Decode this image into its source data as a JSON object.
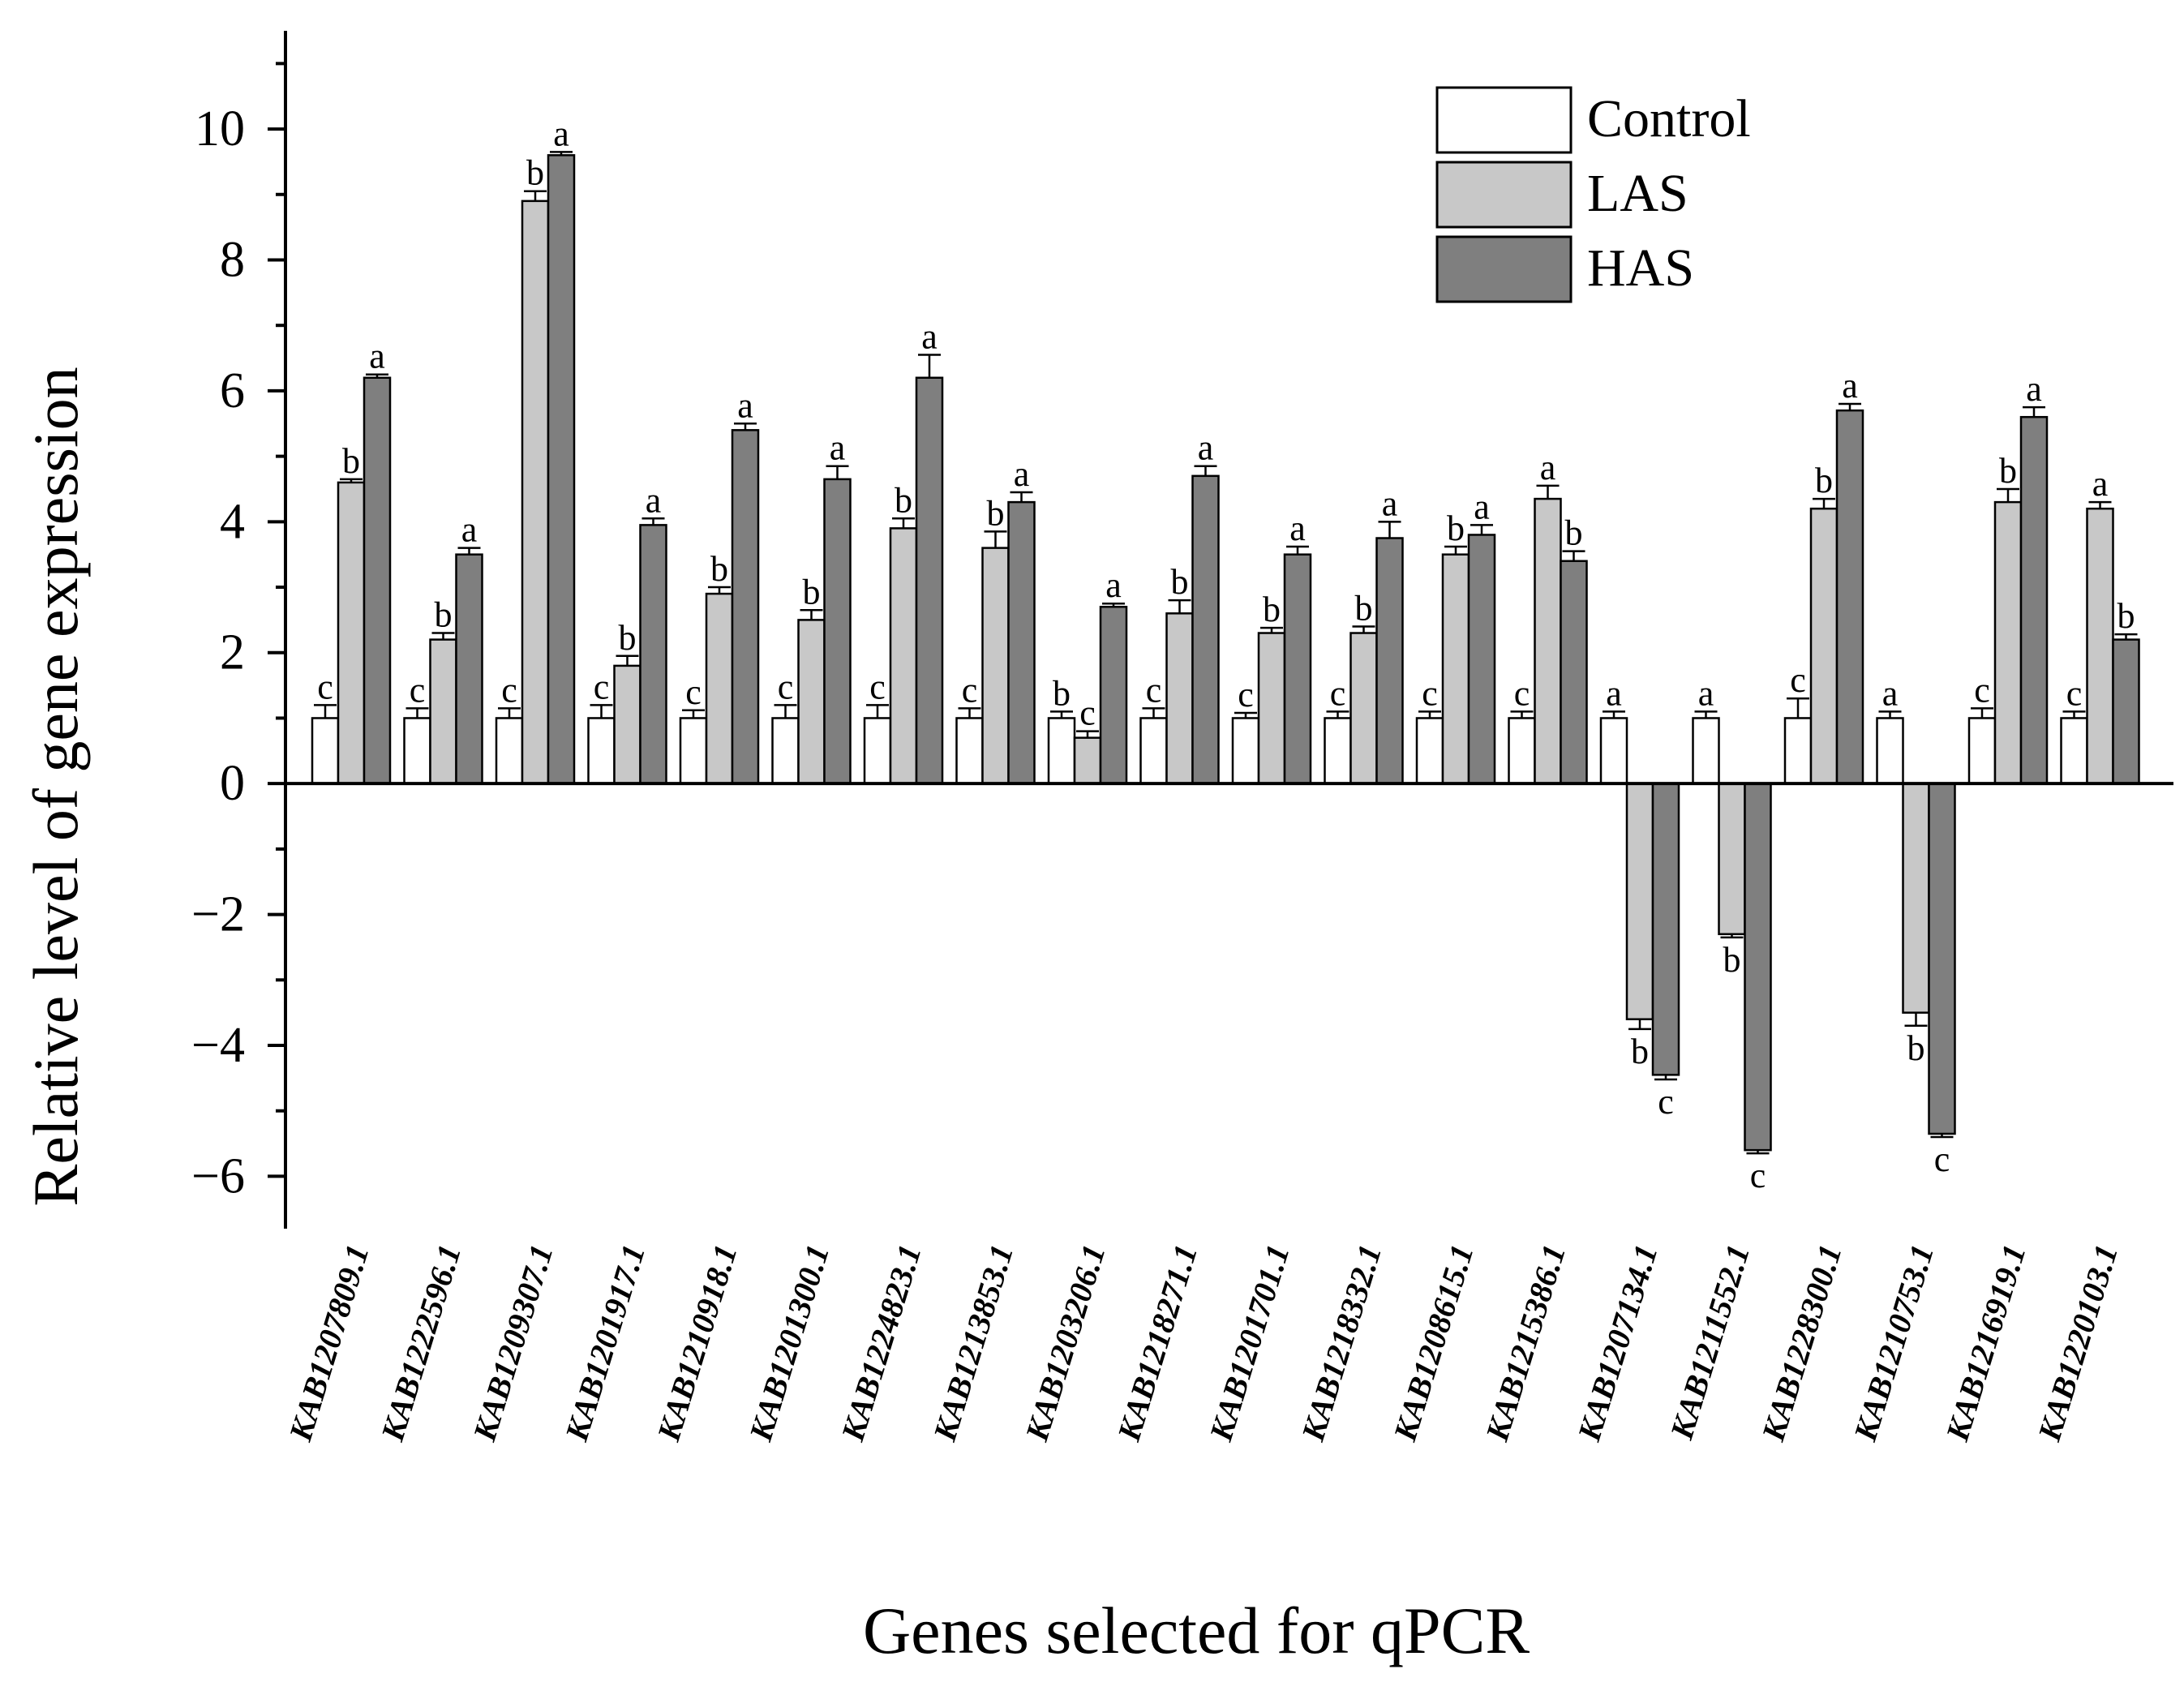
{
  "chart_data": {
    "type": "bar",
    "title": "",
    "xlabel": "Genes selected for qPCR",
    "ylabel": "Relative  level of gene expression",
    "ylim": [
      -6.8,
      11.5
    ],
    "yticks": [
      -6,
      -4,
      -2,
      0,
      2,
      4,
      6,
      8,
      10
    ],
    "ytick_labels": [
      "−6",
      "−4",
      "−2",
      "0",
      "2",
      "4",
      "6",
      "8",
      "10"
    ],
    "categories": [
      "KAB1207809.1",
      "KAB1222596.1",
      "KAB1209307.1",
      "KAB1201917.1",
      "KAB1210918.1",
      "KAB1201300.1",
      "KAB1224823.1",
      "KAB1213853.1",
      "KAB1203206.1",
      "KAB1218271.1",
      "KAB1201701.1",
      "KAB1218332.1",
      "KAB1208615.1",
      "KAB1215386.1",
      "KAB1207134.1",
      "KAB1211552.1",
      "KAB1228300.1",
      "KAB1210753.1",
      "KAB1216919.1",
      "KAB1220103.1"
    ],
    "series": [
      {
        "name": "Control",
        "color": "#ffffff",
        "values": [
          1,
          1,
          1,
          1,
          1,
          1,
          1,
          1,
          1,
          1,
          1,
          1,
          1,
          1,
          1,
          1,
          1,
          1,
          1,
          1
        ],
        "errors": [
          0.2,
          0.15,
          0.15,
          0.2,
          0.12,
          0.2,
          0.2,
          0.15,
          0.1,
          0.15,
          0.08,
          0.1,
          0.1,
          0.1,
          0.1,
          0.1,
          0.3,
          0.1,
          0.15,
          0.1
        ],
        "letters": [
          "c",
          "c",
          "c",
          "c",
          "c",
          "c",
          "c",
          "c",
          "b",
          "c",
          "c",
          "c",
          "c",
          "c",
          "a",
          "a",
          "c",
          "a",
          "c",
          "c"
        ]
      },
      {
        "name": "LAS",
        "color": "#c8c8c8",
        "values": [
          4.6,
          2.2,
          8.9,
          1.8,
          2.9,
          2.5,
          3.9,
          3.6,
          0.7,
          2.6,
          2.3,
          2.3,
          3.5,
          4.35,
          -3.6,
          -2.3,
          4.2,
          -3.5,
          4.3,
          4.2
        ],
        "errors": [
          0.05,
          0.1,
          0.15,
          0.15,
          0.1,
          0.15,
          0.15,
          0.25,
          0.1,
          0.2,
          0.08,
          0.1,
          0.12,
          0.2,
          0.15,
          0.05,
          0.15,
          0.2,
          0.2,
          0.1
        ],
        "letters": [
          "b",
          "b",
          "b",
          "b",
          "b",
          "b",
          "b",
          "b",
          "c",
          "b",
          "b",
          "b",
          "b",
          "a",
          "b",
          "b",
          "b",
          "b",
          "b",
          "a"
        ]
      },
      {
        "name": "HAS",
        "color": "#7f7f7f",
        "values": [
          6.2,
          3.5,
          9.6,
          3.95,
          5.4,
          4.65,
          6.2,
          4.3,
          2.7,
          4.7,
          3.5,
          3.75,
          3.8,
          3.4,
          -4.45,
          -5.6,
          5.7,
          -5.35,
          5.6,
          2.2
        ],
        "errors": [
          0.05,
          0.1,
          0.05,
          0.1,
          0.1,
          0.2,
          0.35,
          0.15,
          0.05,
          0.15,
          0.12,
          0.25,
          0.15,
          0.15,
          0.07,
          0.05,
          0.1,
          0.05,
          0.15,
          0.08
        ],
        "letters": [
          "a",
          "a",
          "a",
          "a",
          "a",
          "a",
          "a",
          "a",
          "a",
          "a",
          "a",
          "a",
          "a",
          "b",
          "c",
          "c",
          "a",
          "c",
          "a",
          "b"
        ]
      }
    ],
    "legend": {
      "position": "top-right",
      "entries": [
        "Control",
        "LAS",
        "HAS"
      ]
    },
    "grid": false
  }
}
